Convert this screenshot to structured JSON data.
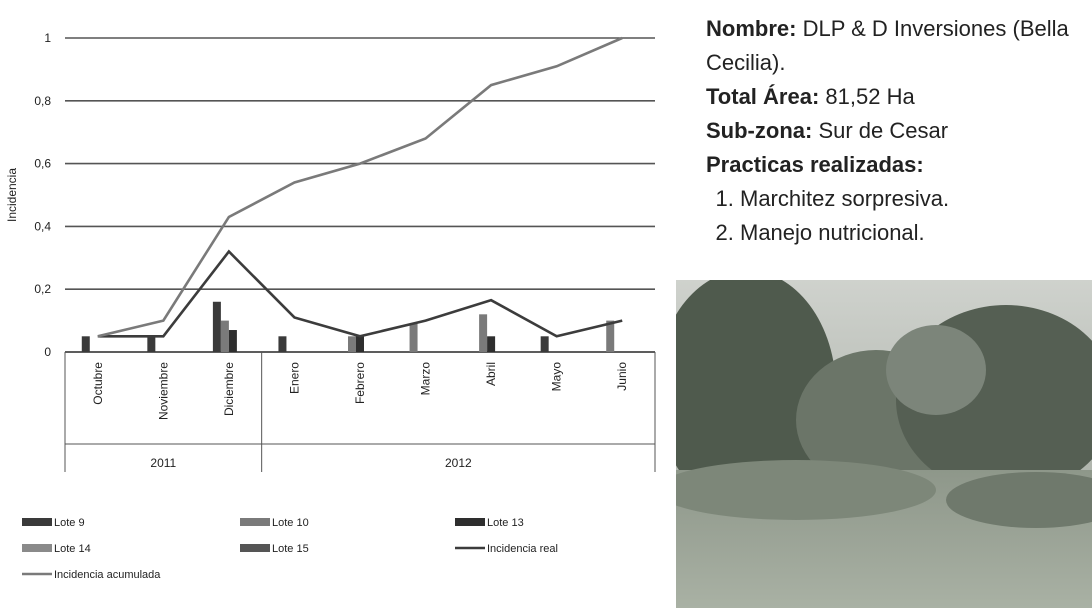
{
  "chart_data": {
    "type": "combo",
    "ylabel": "Incidencia",
    "categories": [
      "Octubre",
      "Noviembre",
      "Diciembre",
      "Enero",
      "Febrero",
      "Marzo",
      "Abril",
      "Mayo",
      "Junio"
    ],
    "groups": [
      {
        "label": "2011",
        "span": 3
      },
      {
        "label": "2012",
        "span": 6
      }
    ],
    "ylim": [
      0,
      1
    ],
    "yticks": [
      0,
      {
        "value": 0.2,
        "label": "0,2"
      },
      {
        "value": 0.4,
        "label": "0,4"
      },
      {
        "value": 0.6,
        "label": "0,6"
      },
      {
        "value": 0.8,
        "label": "0,8"
      },
      1
    ],
    "grid": true,
    "series": [
      {
        "name": "Lote 9",
        "type": "bar",
        "color": "#3a3a3a",
        "values": [
          0.05,
          0.05,
          0.16,
          0.05,
          null,
          null,
          null,
          0.05,
          null
        ]
      },
      {
        "name": "Lote 10",
        "type": "bar",
        "color": "#7a7a7a",
        "values": [
          null,
          null,
          0.1,
          null,
          0.05,
          0.09,
          0.12,
          null,
          0.1
        ]
      },
      {
        "name": "Lote 13",
        "type": "bar",
        "color": "#2e2e2e",
        "values": [
          null,
          null,
          0.07,
          null,
          0.05,
          null,
          0.05,
          null,
          null
        ]
      },
      {
        "name": "Lote 14",
        "type": "bar",
        "color": "#8a8a8a",
        "values": [
          null,
          null,
          null,
          null,
          null,
          null,
          null,
          null,
          null
        ]
      },
      {
        "name": "Lote 15",
        "type": "bar",
        "color": "#555555",
        "values": [
          null,
          null,
          null,
          null,
          null,
          null,
          null,
          null,
          null
        ]
      },
      {
        "name": "Incidencia real",
        "type": "line",
        "color": "#3c3c3c",
        "values": [
          0.05,
          0.05,
          0.32,
          0.11,
          0.05,
          0.1,
          0.165,
          0.05,
          0.1
        ]
      },
      {
        "name": "Incidencia acumulada",
        "type": "line",
        "color": "#7a7a7a",
        "values": [
          0.05,
          0.1,
          0.43,
          0.54,
          0.6,
          0.68,
          0.85,
          0.91,
          1
        ]
      }
    ]
  },
  "info": {
    "nombre_label": "Nombre:",
    "nombre": "DLP & D Inversiones (Bella Cecilia).",
    "area_label": "Total Área:",
    "area": "81,52 Ha",
    "subzona_label": "Sub-zona:",
    "subzona": "Sur de Cesar",
    "practicas": "Practicas realizadas:",
    "items": [
      "Marchitez sorpresiva.",
      "Manejo nutricional."
    ]
  }
}
